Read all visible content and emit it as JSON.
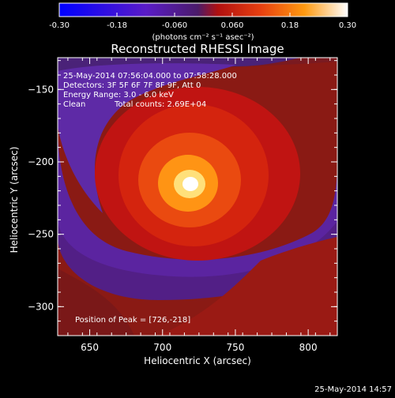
{
  "colorbar": {
    "ticks": [
      "-0.30",
      "-0.18",
      "-0.060",
      "0.060",
      "0.18",
      "0.30"
    ],
    "tick_values": [
      -0.3,
      -0.18,
      -0.06,
      0.06,
      0.18,
      0.3
    ],
    "range": [
      -0.3,
      0.3
    ],
    "unit_label": "(photons cm⁻² s⁻¹ asec⁻²)",
    "colormap": [
      "#0000ff",
      "#5a1cc8",
      "#4b1b6a",
      "#b01010",
      "#e84010",
      "#ff9a10",
      "#ffffff"
    ]
  },
  "chart_data": {
    "type": "heatmap",
    "title": "Reconstructed RHESSI Image",
    "xlabel": "Heliocentric X (arcsec)",
    "ylabel": "Heliocentric Y (arcsec)",
    "xlim": [
      628,
      820
    ],
    "ylim": [
      -320,
      -128
    ],
    "x_ticks": [
      650,
      700,
      750,
      800
    ],
    "y_ticks": [
      -150,
      -200,
      -250,
      -300
    ],
    "x_tick_labels": [
      "650",
      "700",
      "750",
      "800"
    ],
    "y_tick_labels": [
      "−150",
      "−200",
      "−250",
      "−300"
    ],
    "peak": {
      "x": 726,
      "y": -218
    },
    "annotations": [
      "25-May-2014 07:56:04.000 to 07:58:28.000",
      "Detectors: 3F 5F 6F 7F 8F 9F, Att 0",
      "Energy Range: 3.0 - 6.0 keV",
      "Clean",
      "Total counts: 2.69E+04"
    ],
    "peak_label": "Position of Peak = [726,-218]"
  },
  "footer": {
    "timestamp": "25-May-2014 14:57"
  }
}
